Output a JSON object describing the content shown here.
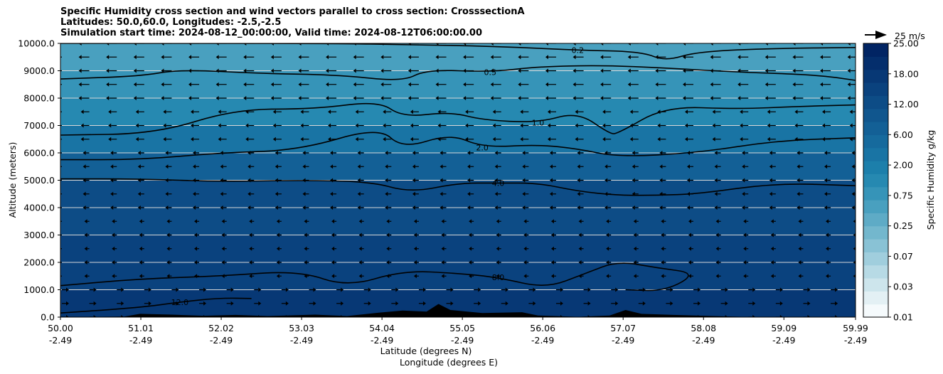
{
  "title": {
    "line1": "Specific Humidity cross section and wind vectors parallel to cross section: CrosssectionA",
    "line2": "Latitudes: 50.0,60.0, Longitudes: -2.5,-2.5",
    "line3": "Simulation start time: 2024-08-12_00:00:00, Valid time: 2024-08-12T06:00:00.00"
  },
  "chart_data": {
    "type": "heatmap",
    "title": "Specific Humidity cross section and wind vectors parallel to cross section: CrosssectionA",
    "xlabel": "Latitude (degrees N)",
    "xlabel2": "Longitude (degrees E)",
    "ylabel": "Altitude (meters)",
    "colorbar_label": "Specific Humidity g/kg",
    "ylim": [
      0,
      10000
    ],
    "xlim": [
      50.0,
      59.99
    ],
    "grid": "horizontal",
    "x_ticks": [
      {
        "lat": "50.00",
        "lon": "-2.49"
      },
      {
        "lat": "51.01",
        "lon": "-2.49"
      },
      {
        "lat": "52.02",
        "lon": "-2.49"
      },
      {
        "lat": "53.03",
        "lon": "-2.49"
      },
      {
        "lat": "54.04",
        "lon": "-2.49"
      },
      {
        "lat": "55.05",
        "lon": "-2.49"
      },
      {
        "lat": "56.06",
        "lon": "-2.49"
      },
      {
        "lat": "57.07",
        "lon": "-2.49"
      },
      {
        "lat": "58.08",
        "lon": "-2.49"
      },
      {
        "lat": "59.09",
        "lon": "-2.49"
      },
      {
        "lat": "59.99",
        "lon": "-2.49"
      }
    ],
    "y_ticks": [
      "0.0",
      "1000.0",
      "2000.0",
      "3000.0",
      "4000.0",
      "5000.0",
      "6000.0",
      "7000.0",
      "8000.0",
      "9000.0",
      "10000.0"
    ],
    "colorbar_ticks": [
      "0.01",
      "0.03",
      "0.07",
      "0.25",
      "0.75",
      "2.00",
      "6.00",
      "12.00",
      "18.00",
      "25.00"
    ],
    "colorbar_colors": [
      "#f5fafc",
      "#e3f0f4",
      "#cde5ec",
      "#b7dae5",
      "#a0cedd",
      "#89c2d5",
      "#73b7cd",
      "#5eabc6",
      "#49a0bf",
      "#3694b8",
      "#2689b1",
      "#1c7fab",
      "#1974a4",
      "#166a9d",
      "#136096",
      "#10568e",
      "#0d4c86",
      "#0a427e",
      "#073875",
      "#042e6c",
      "#012463"
    ],
    "humidity_bands": [
      {
        "altitude": 10000,
        "value": 0.2
      },
      {
        "altitude": 9000,
        "value": 0.35
      },
      {
        "altitude": 8000,
        "value": 0.6
      },
      {
        "altitude": 7000,
        "value": 1.0
      },
      {
        "altitude": 6000,
        "value": 2.0
      },
      {
        "altitude": 5000,
        "value": 4.0
      },
      {
        "altitude": 4000,
        "value": 5.5
      },
      {
        "altitude": 3000,
        "value": 6.5
      },
      {
        "altitude": 2000,
        "value": 7.5
      },
      {
        "altitude": 1000,
        "value": 9.5
      },
      {
        "altitude": 0,
        "value": 12.5
      }
    ],
    "contours": [
      {
        "label": "0.2",
        "points": [
          [
            50.0,
            10000
          ],
          [
            53.5,
            10000
          ],
          [
            54.3,
            9950
          ],
          [
            55.05,
            9920
          ],
          [
            55.8,
            9850
          ],
          [
            56.5,
            9750
          ],
          [
            57.3,
            9700
          ],
          [
            57.6,
            9350
          ],
          [
            58.0,
            9700
          ],
          [
            59.0,
            9820
          ],
          [
            59.99,
            9850
          ]
        ]
      },
      {
        "label": "0.5",
        "points": [
          [
            50.0,
            8700
          ],
          [
            51.0,
            8800
          ],
          [
            51.5,
            9050
          ],
          [
            52.5,
            8900
          ],
          [
            53.5,
            8850
          ],
          [
            54.3,
            8600
          ],
          [
            54.6,
            9050
          ],
          [
            55.4,
            8950
          ],
          [
            56.0,
            9150
          ],
          [
            56.8,
            9200
          ],
          [
            57.6,
            9100
          ],
          [
            58.5,
            8950
          ],
          [
            59.5,
            8850
          ],
          [
            59.99,
            8650
          ]
        ]
      },
      {
        "label": "1.0",
        "points": [
          [
            50.0,
            6650
          ],
          [
            51.2,
            6700
          ],
          [
            52.2,
            7600
          ],
          [
            53.2,
            7600
          ],
          [
            54.0,
            7900
          ],
          [
            54.3,
            7300
          ],
          [
            54.9,
            7500
          ],
          [
            55.3,
            7200
          ],
          [
            56.0,
            7100
          ],
          [
            56.5,
            7500
          ],
          [
            56.9,
            6700
          ],
          [
            57.0,
            6700
          ],
          [
            57.6,
            7700
          ],
          [
            58.5,
            7600
          ],
          [
            59.3,
            7700
          ],
          [
            59.99,
            7750
          ]
        ]
      },
      {
        "label": "2.0",
        "points": [
          [
            50.0,
            5750
          ],
          [
            51.0,
            5750
          ],
          [
            52.0,
            6000
          ],
          [
            53.0,
            6100
          ],
          [
            54.0,
            6950
          ],
          [
            54.3,
            6150
          ],
          [
            54.9,
            6700
          ],
          [
            55.3,
            6200
          ],
          [
            56.0,
            6300
          ],
          [
            56.5,
            6150
          ],
          [
            57.0,
            5850
          ],
          [
            58.0,
            6000
          ],
          [
            59.0,
            6450
          ],
          [
            59.99,
            6550
          ]
        ]
      },
      {
        "label": "4.0",
        "points": [
          [
            50.0,
            5050
          ],
          [
            51.0,
            5050
          ],
          [
            52.0,
            4950
          ],
          [
            53.0,
            5000
          ],
          [
            53.9,
            4950
          ],
          [
            54.4,
            4550
          ],
          [
            55.0,
            4900
          ],
          [
            55.5,
            4900
          ],
          [
            56.0,
            4900
          ],
          [
            56.5,
            4600
          ],
          [
            57.0,
            4450
          ],
          [
            57.5,
            4450
          ],
          [
            58.0,
            4500
          ],
          [
            59.0,
            4900
          ],
          [
            59.99,
            4800
          ]
        ]
      },
      {
        "label": "8.0",
        "points": [
          [
            50.0,
            1150
          ],
          [
            51.0,
            1400
          ],
          [
            52.0,
            1500
          ],
          [
            53.0,
            1700
          ],
          [
            53.6,
            1100
          ],
          [
            54.3,
            1700
          ],
          [
            55.0,
            1600
          ],
          [
            55.5,
            1450
          ],
          [
            56.1,
            1050
          ],
          [
            56.6,
            1600
          ],
          [
            57.0,
            2050
          ],
          [
            57.5,
            1800
          ],
          [
            58.0,
            1600
          ],
          [
            57.6,
            950
          ],
          [
            57.1,
            1000
          ]
        ]
      },
      {
        "label": "12.0",
        "points": [
          [
            50.0,
            150
          ],
          [
            51.0,
            350
          ],
          [
            51.5,
            550
          ],
          [
            52.0,
            700
          ],
          [
            52.4,
            680
          ]
        ]
      }
    ],
    "wind_reference": {
      "value": 25,
      "unit": "m/s",
      "label": "25 m/s"
    }
  }
}
